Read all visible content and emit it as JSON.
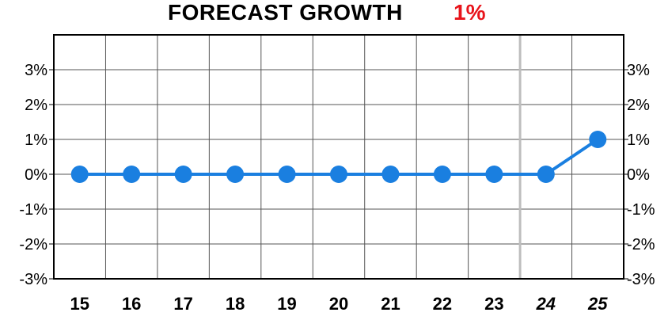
{
  "title": {
    "text": "FORECAST GROWTH",
    "value": "1%",
    "value_color": "#e8141b"
  },
  "chart_data": {
    "type": "line",
    "title": "FORECAST GROWTH",
    "categories": [
      "15",
      "16",
      "17",
      "18",
      "19",
      "20",
      "21",
      "22",
      "23",
      "24",
      "25"
    ],
    "series": [
      {
        "values": [
          0,
          0,
          0,
          0,
          0,
          0,
          0,
          0,
          0,
          0,
          1
        ],
        "color": "#1a7fe0"
      }
    ],
    "forecast_categories": [
      "24",
      "25"
    ],
    "y_ticks": [
      "3%",
      "2%",
      "1%",
      "0%",
      "-1%",
      "-2%",
      "-3%"
    ],
    "ylim": [
      -3,
      4
    ],
    "y_unit": "%",
    "grid": true,
    "y_labels_both_sides": true
  }
}
